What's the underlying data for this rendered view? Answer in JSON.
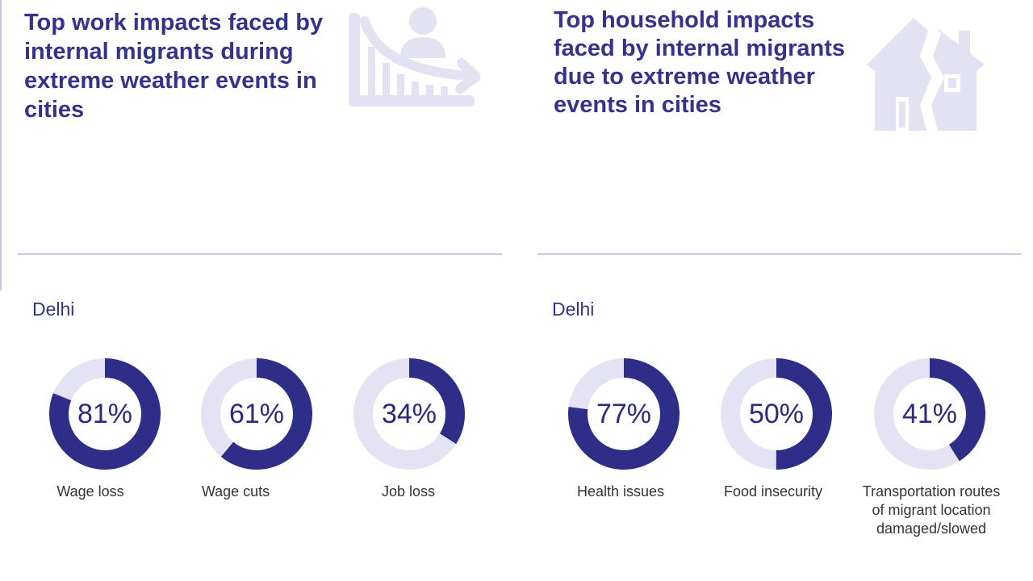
{
  "colors": {
    "accent": "#2e2d87",
    "track": "#e4e3f3",
    "icon": "#e3e2f2"
  },
  "panels": [
    {
      "title": "Top work impacts faced by internal migrants during extreme weather events in cities",
      "icon": "declining-graph-person-icon",
      "city": "Delhi"
    },
    {
      "title": "Top household impacts faced by internal migrants due to extreme weather events in cities",
      "icon": "damaged-house-icon",
      "city": "Delhi"
    }
  ],
  "chart_data": [
    {
      "type": "pie",
      "title": "Top work impacts faced by internal migrants during extreme weather events in cities",
      "subtitle": "Delhi",
      "categories": [
        "Wage loss",
        "Wage cuts",
        "Job loss"
      ],
      "values": [
        81,
        61,
        34
      ],
      "labels": [
        "81%",
        "61%",
        "34%"
      ],
      "unit": "%"
    },
    {
      "type": "pie",
      "title": "Top household impacts faced by internal migrants due to extreme weather events in cities",
      "subtitle": "Delhi",
      "categories": [
        "Health issues",
        "Food insecurity",
        "Transportation routes of migrant location damaged/slowed"
      ],
      "values": [
        77,
        50,
        41
      ],
      "labels": [
        "77%",
        "50%",
        "41%"
      ],
      "unit": "%"
    }
  ]
}
